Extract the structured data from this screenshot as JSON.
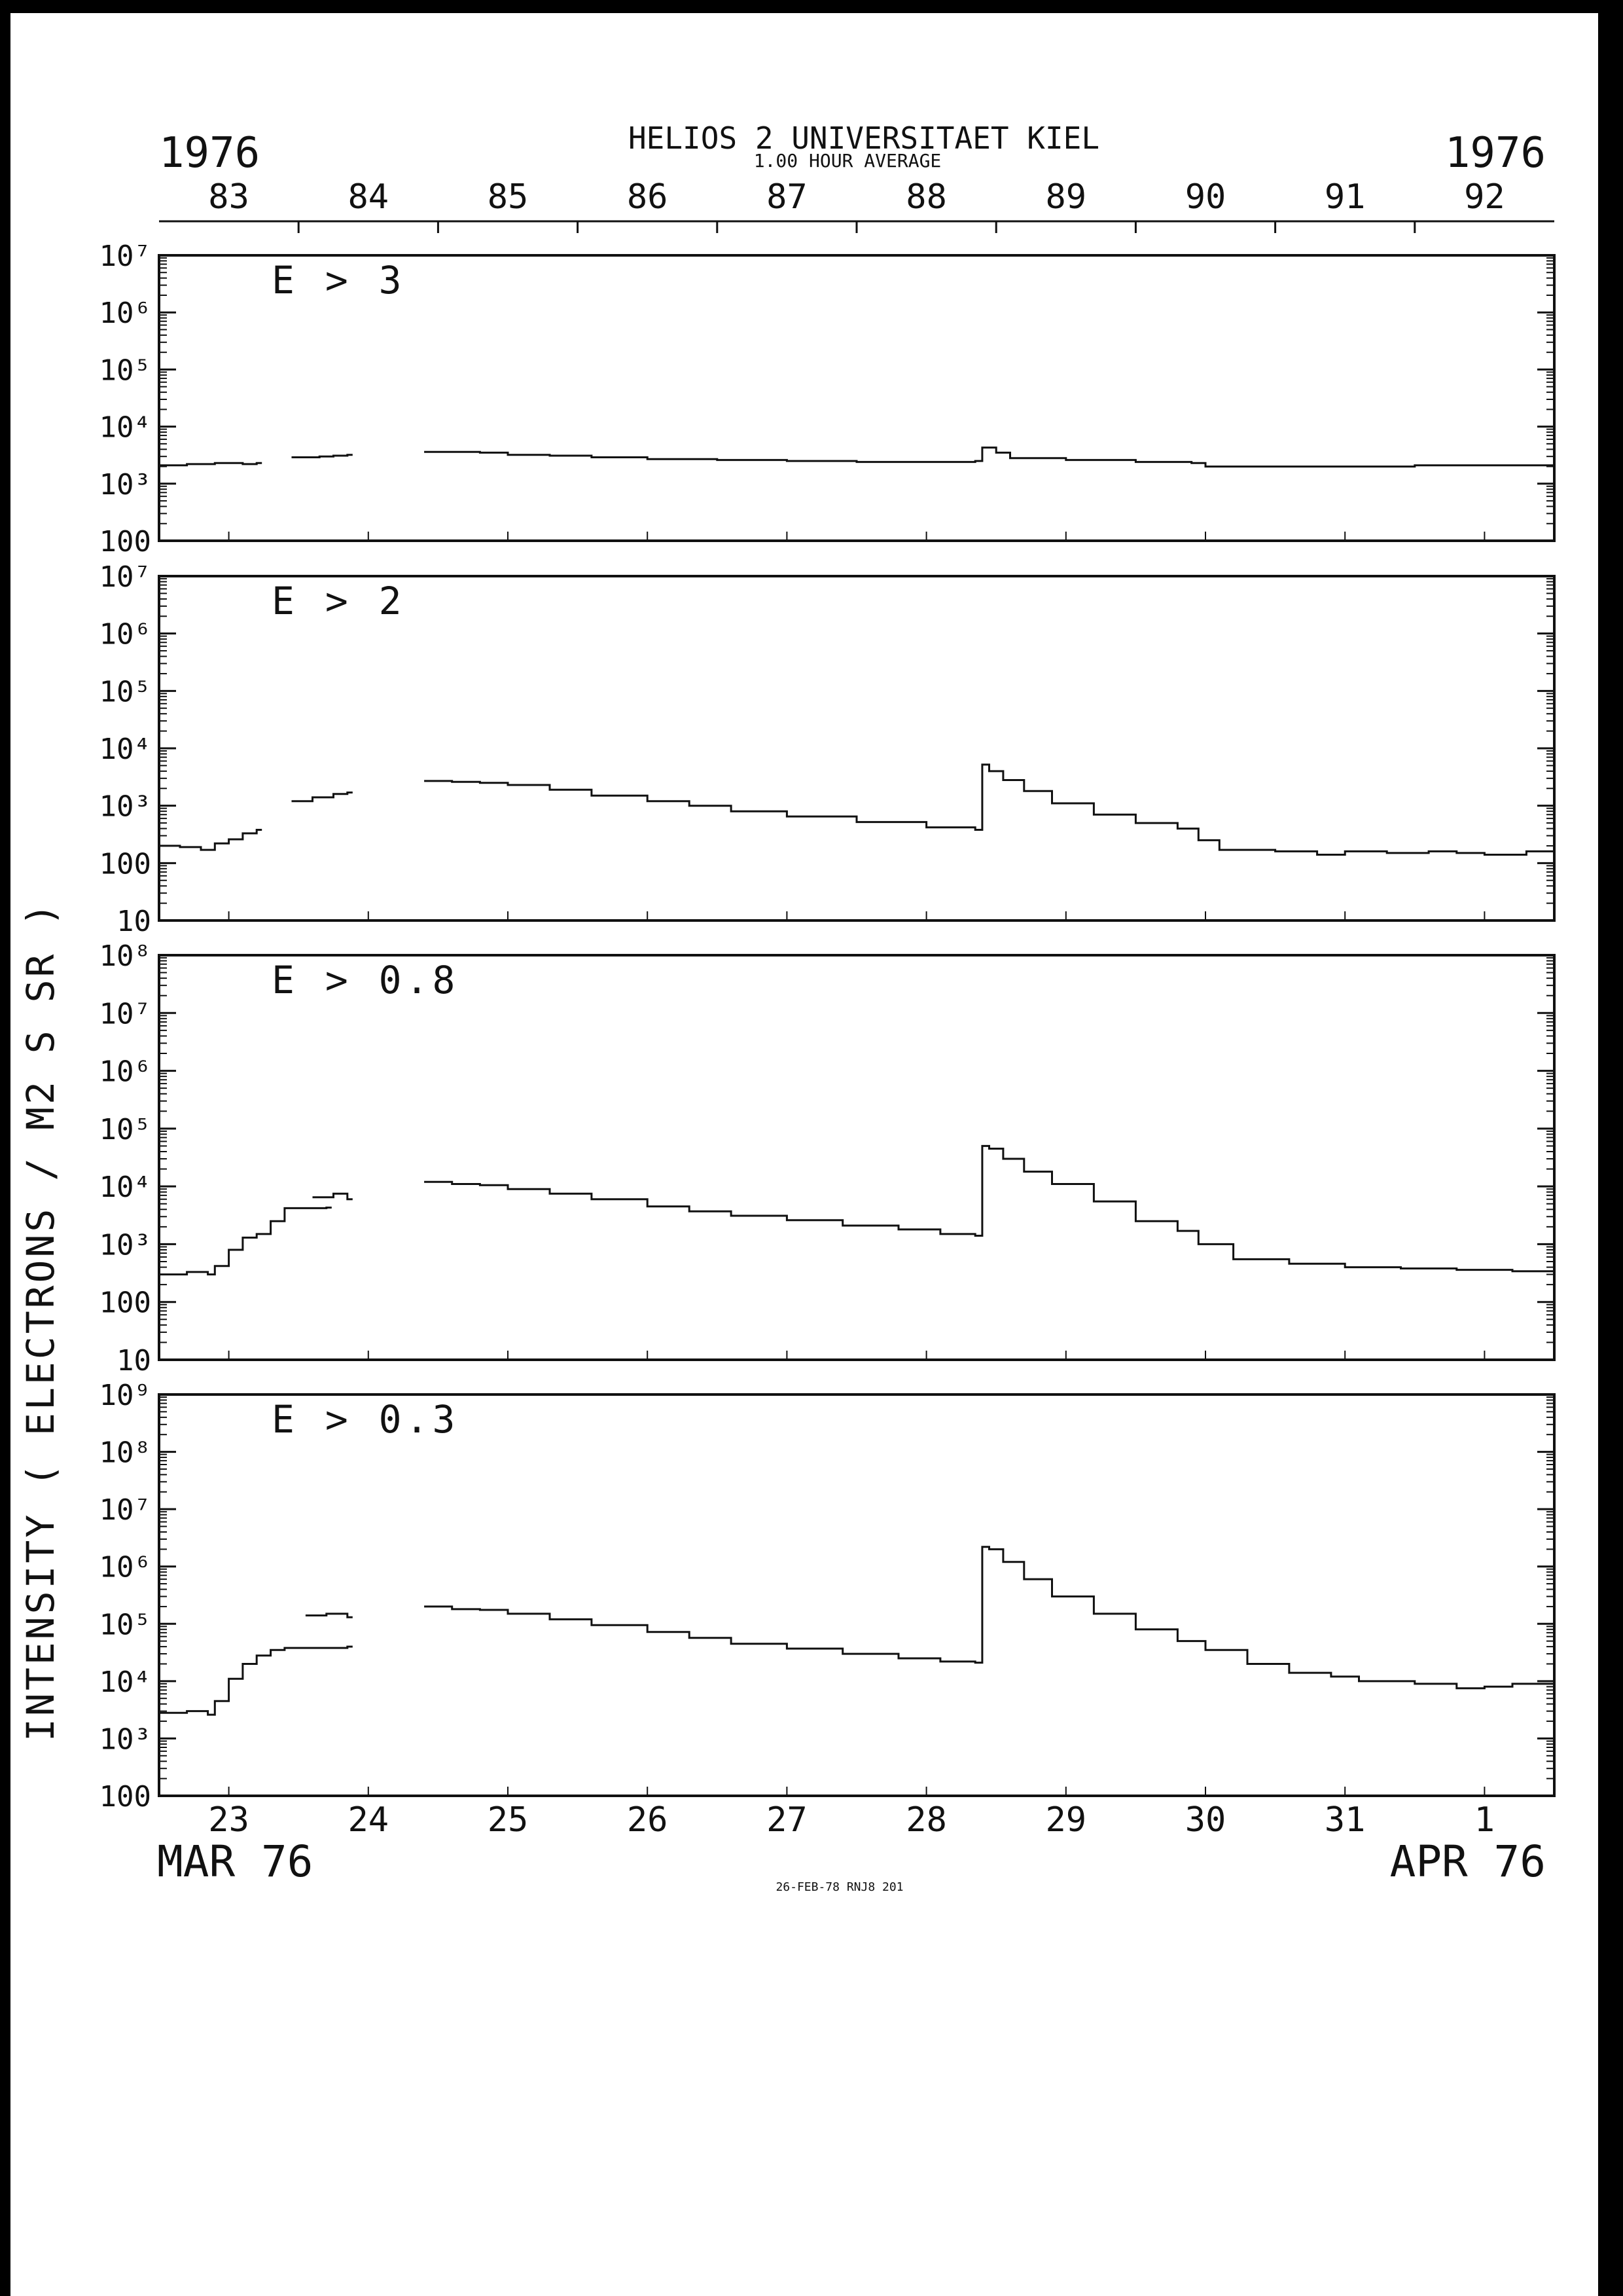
{
  "header": {
    "title": "HELIOS 2  UNIVERSITAET KIEL",
    "subtitle": "1.00 HOUR AVERAGE",
    "year_left": "1976",
    "year_right": "1976"
  },
  "footer": {
    "month_left": "MAR 76",
    "month_right": "APR 76",
    "stamp": "26-FEB-78 RNJ8 201"
  },
  "ylabel": "INTENSITY  ( ELECTRONS  / M2 S SR  )",
  "top_axis_ticks": [
    "83",
    "84",
    "85",
    "86",
    "87",
    "88",
    "89",
    "90",
    "91",
    "92"
  ],
  "bottom_axis_ticks": [
    "23",
    "24",
    "25",
    "26",
    "27",
    "28",
    "29",
    "30",
    "31",
    "1"
  ],
  "colors": {
    "ink": "#111111",
    "paper": "#ffffff",
    "border": "#000000"
  },
  "chart_data": [
    {
      "type": "line",
      "step": true,
      "yscale": "log",
      "panel_label": "E > 3",
      "ytick_labels": [
        "100",
        "10³",
        "10⁴",
        "10⁵",
        "10⁶",
        "10⁷"
      ],
      "ylim": [
        100,
        10000000
      ],
      "x_unit": "day of year 1976",
      "xlim": [
        82.5,
        92.5
      ],
      "series": [
        {
          "points": [
            [
              82.5,
              2100
            ],
            [
              82.7,
              2200
            ],
            [
              82.9,
              2300
            ],
            [
              83.1,
              2200
            ],
            [
              83.2,
              2300
            ]
          ]
        },
        {
          "points": [
            [
              83.45,
              2900
            ],
            [
              83.65,
              3000
            ],
            [
              83.75,
              3100
            ],
            [
              83.85,
              3200
            ]
          ]
        },
        {
          "points": [
            [
              84.4,
              3600
            ],
            [
              84.8,
              3500
            ],
            [
              85.0,
              3200
            ],
            [
              85.3,
              3100
            ],
            [
              85.6,
              2900
            ],
            [
              86.0,
              2700
            ],
            [
              86.5,
              2600
            ],
            [
              87.0,
              2500
            ],
            [
              87.5,
              2400
            ],
            [
              88.0,
              2400
            ],
            [
              88.35,
              2500
            ],
            [
              88.4,
              4300
            ],
            [
              88.5,
              3500
            ],
            [
              88.6,
              2800
            ],
            [
              89.0,
              2600
            ],
            [
              89.5,
              2400
            ],
            [
              89.9,
              2300
            ],
            [
              90.0,
              2000
            ],
            [
              90.2,
              2000
            ],
            [
              90.6,
              2000
            ],
            [
              91.0,
              2000
            ],
            [
              91.5,
              2100
            ],
            [
              92.0,
              2100
            ],
            [
              92.5,
              2100
            ]
          ]
        }
      ]
    },
    {
      "type": "line",
      "step": true,
      "yscale": "log",
      "panel_label": "E > 2",
      "ytick_labels": [
        "10",
        "100",
        "10³",
        "10⁴",
        "10⁵",
        "10⁶",
        "10⁷"
      ],
      "ylim": [
        10,
        10000000
      ],
      "x_unit": "day of year 1976",
      "xlim": [
        82.5,
        92.5
      ],
      "series": [
        {
          "points": [
            [
              82.5,
              200
            ],
            [
              82.65,
              190
            ],
            [
              82.8,
              170
            ],
            [
              82.9,
              220
            ],
            [
              83.0,
              260
            ],
            [
              83.1,
              330
            ],
            [
              83.2,
              380
            ]
          ]
        },
        {
          "points": [
            [
              83.45,
              1200
            ],
            [
              83.6,
              1400
            ],
            [
              83.75,
              1600
            ],
            [
              83.85,
              1700
            ]
          ]
        },
        {
          "points": [
            [
              84.4,
              2700
            ],
            [
              84.6,
              2600
            ],
            [
              84.8,
              2500
            ],
            [
              85.0,
              2300
            ],
            [
              85.3,
              1900
            ],
            [
              85.6,
              1500
            ],
            [
              86.0,
              1200
            ],
            [
              86.3,
              1000
            ],
            [
              86.6,
              800
            ],
            [
              87.0,
              650
            ],
            [
              87.5,
              520
            ],
            [
              88.0,
              420
            ],
            [
              88.35,
              380
            ],
            [
              88.4,
              5200
            ],
            [
              88.45,
              4000
            ],
            [
              88.55,
              2800
            ],
            [
              88.7,
              1800
            ],
            [
              88.9,
              1100
            ],
            [
              89.2,
              700
            ],
            [
              89.5,
              500
            ],
            [
              89.8,
              400
            ],
            [
              89.95,
              250
            ],
            [
              90.1,
              170
            ],
            [
              90.5,
              160
            ],
            [
              90.8,
              140
            ],
            [
              91.0,
              160
            ],
            [
              91.3,
              150
            ],
            [
              91.6,
              160
            ],
            [
              91.8,
              150
            ],
            [
              92.0,
              140
            ],
            [
              92.3,
              160
            ],
            [
              92.5,
              150
            ]
          ]
        }
      ]
    },
    {
      "type": "line",
      "step": true,
      "yscale": "log",
      "panel_label": "E > 0.8",
      "ytick_labels": [
        "10",
        "100",
        "10³",
        "10⁴",
        "10⁵",
        "10⁶",
        "10⁷",
        "10⁸"
      ],
      "ylim": [
        10,
        100000000
      ],
      "x_unit": "day of year 1976",
      "xlim": [
        82.5,
        92.5
      ],
      "series": [
        {
          "points": [
            [
              82.5,
              300
            ],
            [
              82.7,
              330
            ],
            [
              82.85,
              300
            ],
            [
              82.9,
              420
            ],
            [
              83.0,
              800
            ],
            [
              83.1,
              1300
            ],
            [
              83.2,
              1500
            ],
            [
              83.3,
              2500
            ],
            [
              83.4,
              4200
            ],
            [
              83.7,
              4300
            ]
          ]
        },
        {
          "points": [
            [
              83.6,
              6500
            ],
            [
              83.75,
              7500
            ],
            [
              83.85,
              6000
            ]
          ]
        },
        {
          "points": [
            [
              84.4,
              12000
            ],
            [
              84.6,
              11000
            ],
            [
              84.8,
              10500
            ],
            [
              85.0,
              9000
            ],
            [
              85.3,
              7500
            ],
            [
              85.6,
              6000
            ],
            [
              86.0,
              4500
            ],
            [
              86.3,
              3700
            ],
            [
              86.6,
              3100
            ],
            [
              87.0,
              2600
            ],
            [
              87.4,
              2100
            ],
            [
              87.8,
              1800
            ],
            [
              88.1,
              1500
            ],
            [
              88.35,
              1400
            ],
            [
              88.4,
              50000
            ],
            [
              88.45,
              45000
            ],
            [
              88.55,
              30000
            ],
            [
              88.7,
              18000
            ],
            [
              88.9,
              11000
            ],
            [
              89.2,
              5500
            ],
            [
              89.5,
              2500
            ],
            [
              89.8,
              1700
            ],
            [
              89.95,
              1000
            ],
            [
              90.2,
              550
            ],
            [
              90.6,
              460
            ],
            [
              91.0,
              400
            ],
            [
              91.4,
              380
            ],
            [
              91.8,
              360
            ],
            [
              92.2,
              340
            ],
            [
              92.5,
              360
            ]
          ]
        }
      ]
    },
    {
      "type": "line",
      "step": true,
      "yscale": "log",
      "panel_label": "E > 0.3",
      "ytick_labels": [
        "100",
        "10³",
        "10⁴",
        "10⁵",
        "10⁶",
        "10⁷",
        "10⁸",
        "10⁹"
      ],
      "ylim": [
        100,
        1000000000
      ],
      "x_unit": "day of year 1976",
      "xlim": [
        82.5,
        92.5
      ],
      "series": [
        {
          "points": [
            [
              82.5,
              2800
            ],
            [
              82.7,
              3000
            ],
            [
              82.85,
              2600
            ],
            [
              82.9,
              4500
            ],
            [
              83.0,
              11000
            ],
            [
              83.1,
              20000
            ],
            [
              83.2,
              28000
            ],
            [
              83.3,
              35000
            ],
            [
              83.4,
              38000
            ],
            [
              83.85,
              40000
            ]
          ]
        },
        {
          "points": [
            [
              83.55,
              140000
            ],
            [
              83.7,
              150000
            ],
            [
              83.85,
              130000
            ]
          ]
        },
        {
          "points": [
            [
              84.4,
              200000
            ],
            [
              84.6,
              180000
            ],
            [
              84.8,
              175000
            ],
            [
              85.0,
              150000
            ],
            [
              85.3,
              120000
            ],
            [
              85.6,
              95000
            ],
            [
              86.0,
              72000
            ],
            [
              86.3,
              57000
            ],
            [
              86.6,
              45000
            ],
            [
              87.0,
              37000
            ],
            [
              87.4,
              30000
            ],
            [
              87.8,
              25000
            ],
            [
              88.1,
              22000
            ],
            [
              88.35,
              21000
            ],
            [
              88.4,
              2200000
            ],
            [
              88.45,
              2000000
            ],
            [
              88.55,
              1200000
            ],
            [
              88.7,
              600000
            ],
            [
              88.9,
              300000
            ],
            [
              89.2,
              150000
            ],
            [
              89.5,
              80000
            ],
            [
              89.8,
              50000
            ],
            [
              90.0,
              35000
            ],
            [
              90.3,
              20000
            ],
            [
              90.6,
              14000
            ],
            [
              90.9,
              12000
            ],
            [
              91.1,
              10000
            ],
            [
              91.5,
              9000
            ],
            [
              91.8,
              7500
            ],
            [
              92.0,
              8000
            ],
            [
              92.2,
              9000
            ],
            [
              92.5,
              10000
            ]
          ]
        }
      ]
    }
  ]
}
